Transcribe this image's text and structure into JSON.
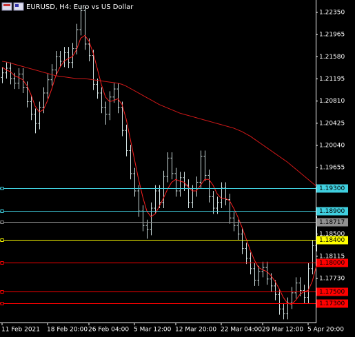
{
  "chart_data": {
    "type": "ohlc",
    "title": "EURUSD, H4:  Euro vs US Dollar",
    "bar_color": "#d0e0e0",
    "background": "#000000",
    "categories": [
      "11 Feb 2021",
      null,
      null,
      null,
      null,
      null,
      null,
      null,
      null,
      null,
      null,
      "18 Feb 20:00",
      null,
      null,
      null,
      null,
      null,
      null,
      null,
      null,
      null,
      "26 Feb 04:00",
      null,
      null,
      null,
      null,
      null,
      null,
      null,
      null,
      null,
      null,
      "5 Mar 12:00",
      null,
      null,
      null,
      null,
      null,
      null,
      null,
      null,
      null,
      "12 Mar 20:00",
      null,
      null,
      null,
      null,
      null,
      null,
      null,
      null,
      null,
      null,
      "22 Mar 04:00",
      null,
      null,
      null,
      null,
      null,
      null,
      null,
      null,
      null,
      "29 Mar 12:00",
      null,
      null,
      null,
      null,
      null,
      null,
      null,
      null,
      null,
      null,
      "5 Apr 20:00",
      null,
      null
    ],
    "open": [
      1.2122,
      1.213,
      1.2138,
      1.212,
      1.2112,
      1.2128,
      1.2105,
      1.208,
      1.2058,
      1.2042,
      1.207,
      1.2095,
      1.2118,
      1.2135,
      1.2158,
      1.215,
      1.2165,
      1.2148,
      1.2172,
      1.2205,
      1.2238,
      1.218,
      1.216,
      1.211,
      1.2095,
      1.207,
      1.2058,
      1.2088,
      1.2102,
      1.207,
      1.203,
      1.1995,
      1.1955,
      1.1925,
      1.189,
      1.1865,
      1.1858,
      1.1895,
      1.1925,
      1.1905,
      1.195,
      1.1982,
      1.1955,
      1.1925,
      1.1948,
      1.1935,
      1.1905,
      1.1925,
      1.194,
      1.1985,
      1.1952,
      1.1915,
      1.1895,
      1.1905,
      1.193,
      1.191,
      1.1878,
      1.1865,
      1.185,
      1.1825,
      1.1808,
      1.179,
      1.177,
      1.1785,
      1.1792,
      1.1772,
      1.176,
      1.1745,
      1.172,
      1.1712,
      1.173,
      1.1748,
      1.1765,
      1.1752,
      1.174,
      1.179,
      1.183
    ],
    "high": [
      1.214,
      1.2148,
      1.2148,
      1.213,
      1.2138,
      1.2138,
      1.2115,
      1.209,
      1.2068,
      1.208,
      1.2105,
      1.2128,
      1.2145,
      1.2168,
      1.2168,
      1.2175,
      1.2175,
      1.2182,
      1.2215,
      1.2248,
      1.2245,
      1.219,
      1.217,
      1.212,
      1.2105,
      1.208,
      1.2098,
      1.2112,
      1.2112,
      1.208,
      1.204,
      1.2005,
      1.1965,
      1.1935,
      1.19,
      1.1875,
      1.1905,
      1.1935,
      1.1935,
      1.196,
      1.1992,
      1.1992,
      1.1965,
      1.1958,
      1.1958,
      1.1945,
      1.1935,
      1.195,
      1.1995,
      1.1995,
      1.1962,
      1.1925,
      1.1915,
      1.194,
      1.194,
      1.192,
      1.1888,
      1.1875,
      1.186,
      1.1835,
      1.1818,
      1.18,
      1.1795,
      1.1802,
      1.1802,
      1.1782,
      1.177,
      1.1755,
      1.173,
      1.174,
      1.1758,
      1.1775,
      1.1775,
      1.1762,
      1.18,
      1.184,
      1.1882
    ],
    "low": [
      1.2112,
      1.212,
      1.211,
      1.2102,
      1.2102,
      1.2095,
      1.207,
      1.2048,
      1.2025,
      1.2032,
      1.206,
      1.2085,
      1.2108,
      1.2125,
      1.214,
      1.214,
      1.2138,
      1.2138,
      1.2162,
      1.2195,
      1.217,
      1.215,
      1.21,
      1.2085,
      1.206,
      1.204,
      1.2048,
      1.2078,
      1.206,
      1.202,
      1.1985,
      1.1945,
      1.1915,
      1.188,
      1.1855,
      1.1842,
      1.1848,
      1.1885,
      1.1895,
      1.1895,
      1.194,
      1.1945,
      1.1915,
      1.1915,
      1.1925,
      1.1895,
      1.1895,
      1.1915,
      1.193,
      1.1942,
      1.1905,
      1.1885,
      1.1885,
      1.1895,
      1.19,
      1.1868,
      1.1855,
      1.184,
      1.1815,
      1.1798,
      1.178,
      1.176,
      1.176,
      1.1775,
      1.1762,
      1.175,
      1.1735,
      1.171,
      1.1702,
      1.1702,
      1.172,
      1.1738,
      1.1742,
      1.173,
      1.173,
      1.178,
      1.182
    ],
    "close": [
      1.213,
      1.2138,
      1.212,
      1.2112,
      1.2128,
      1.2105,
      1.208,
      1.2058,
      1.2042,
      1.207,
      1.2095,
      1.2118,
      1.2135,
      1.2158,
      1.215,
      1.2165,
      1.2148,
      1.2172,
      1.2205,
      1.2238,
      1.218,
      1.216,
      1.211,
      1.2095,
      1.207,
      1.2058,
      1.2088,
      1.2102,
      1.207,
      1.203,
      1.1995,
      1.1955,
      1.1925,
      1.189,
      1.1865,
      1.1858,
      1.1895,
      1.1925,
      1.1905,
      1.195,
      1.1982,
      1.1955,
      1.1925,
      1.1948,
      1.1935,
      1.1905,
      1.1925,
      1.194,
      1.1985,
      1.1952,
      1.1915,
      1.1895,
      1.1905,
      1.193,
      1.191,
      1.1878,
      1.1865,
      1.185,
      1.1825,
      1.1808,
      1.179,
      1.177,
      1.1785,
      1.1792,
      1.1772,
      1.176,
      1.1745,
      1.172,
      1.1712,
      1.173,
      1.1748,
      1.1765,
      1.1752,
      1.174,
      1.179,
      1.183,
      1.1872
    ],
    "series": [
      {
        "color": "#ff2020",
        "values": [
          1.214,
          1.2135,
          1.2132,
          1.2125,
          1.2122,
          1.2118,
          1.2108,
          1.2092,
          1.2072,
          1.2062,
          1.2066,
          1.2082,
          1.2102,
          1.2125,
          1.214,
          1.215,
          1.2155,
          1.2158,
          1.217,
          1.219,
          1.2195,
          1.2185,
          1.2165,
          1.2138,
          1.211,
          1.2088,
          1.208,
          1.2082,
          1.2085,
          1.2075,
          1.205,
          1.2015,
          1.198,
          1.1945,
          1.1915,
          1.189,
          1.188,
          1.1885,
          1.1898,
          1.1912,
          1.1928,
          1.194,
          1.1945,
          1.1942,
          1.194,
          1.1932,
          1.1925,
          1.1925,
          1.1935,
          1.1945,
          1.1945,
          1.1935,
          1.192,
          1.1912,
          1.1912,
          1.1908,
          1.1895,
          1.188,
          1.1862,
          1.1842,
          1.1822,
          1.1805,
          1.1792,
          1.1788,
          1.1785,
          1.1778,
          1.1768,
          1.1755,
          1.174,
          1.173,
          1.1728,
          1.1735,
          1.1745,
          1.175,
          1.1752,
          1.1768,
          1.1795
        ]
      },
      {
        "color": "#d01818",
        "values": [
          1.215,
          1.2149,
          1.2147,
          1.2145,
          1.2143,
          1.2141,
          1.2139,
          1.2137,
          1.2135,
          1.2133,
          1.2131,
          1.2129,
          1.2127,
          1.2125,
          1.2124,
          1.2123,
          1.2122,
          1.2121,
          1.212,
          1.212,
          1.212,
          1.2119,
          1.2118,
          1.2117,
          1.2116,
          1.2115,
          1.2114,
          1.2113,
          1.2112,
          1.211,
          1.2107,
          1.2103,
          1.2099,
          1.2095,
          1.2091,
          1.2087,
          1.2083,
          1.2079,
          1.2075,
          1.2072,
          1.2069,
          1.2066,
          1.2063,
          1.206,
          1.2058,
          1.2056,
          1.2054,
          1.2052,
          1.205,
          1.2048,
          1.2046,
          1.2044,
          1.2042,
          1.204,
          1.2038,
          1.2036,
          1.2034,
          1.2031,
          1.2028,
          1.2024,
          1.202,
          1.2015,
          1.201,
          1.2005,
          1.2,
          1.1995,
          1.199,
          1.1985,
          1.198,
          1.1975,
          1.1969,
          1.1963,
          1.1957,
          1.1951,
          1.1945,
          1.1939,
          1.1933
        ]
      }
    ],
    "levels": [
      {
        "value": 1.193,
        "label": "1.19300",
        "color": "#40d0e0"
      },
      {
        "value": 1.189,
        "label": "1.18900",
        "color": "#40d0e0"
      },
      {
        "value": 1.18717,
        "label": "1.18717",
        "color": "#909090"
      },
      {
        "value": 1.184,
        "label": "1.18400",
        "color": "#ffff00"
      },
      {
        "value": 1.18,
        "label": "1.18000",
        "color": "#ff0000"
      },
      {
        "value": 1.175,
        "label": "1.17500",
        "color": "#ff0000"
      },
      {
        "value": 1.173,
        "label": "1.17300",
        "color": "#ff0000"
      }
    ],
    "ylim": [
      1.16964,
      1.22565
    ],
    "yticks": [
      {
        "value": 1.2235,
        "label": "1.22350"
      },
      {
        "value": 1.21965,
        "label": "1.21965"
      },
      {
        "value": 1.2158,
        "label": "1.21580"
      },
      {
        "value": 1.21195,
        "label": "1.21195"
      },
      {
        "value": 1.2081,
        "label": "1.20810"
      },
      {
        "value": 1.20425,
        "label": "1.20425"
      },
      {
        "value": 1.2004,
        "label": "1.20040"
      },
      {
        "value": 1.19655,
        "label": "1.19655"
      },
      {
        "value": 1.185,
        "label": "1.18500"
      },
      {
        "value": 1.18115,
        "label": "1.18115"
      },
      {
        "value": 1.1773,
        "label": "1.17730"
      }
    ]
  }
}
